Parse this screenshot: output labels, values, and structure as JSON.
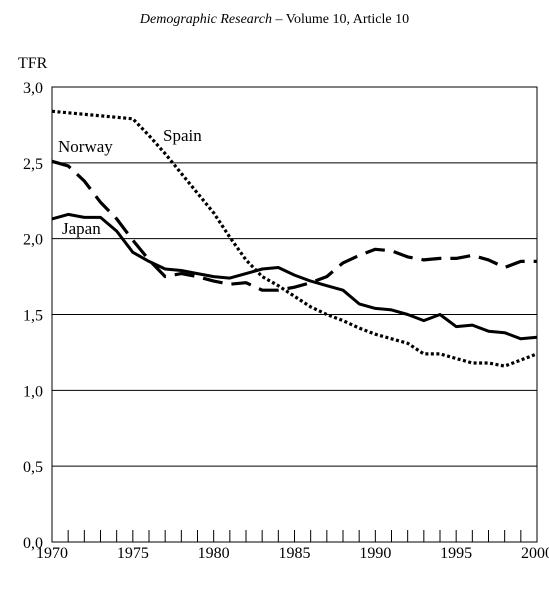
{
  "header": {
    "journal": "Demographic Research",
    "separator": " – ",
    "issue": "Volume 10, Article 10"
  },
  "chart_data": {
    "type": "line",
    "ylabel": "TFR",
    "xlabel": "",
    "xlim": [
      1970,
      2000
    ],
    "ylim": [
      0,
      3
    ],
    "x_ticks": [
      1970,
      1975,
      1980,
      1985,
      1990,
      1995,
      2000
    ],
    "y_ticks": [
      "0,0",
      "0,5",
      "1,0",
      "1,5",
      "2,0",
      "2,5",
      "3,0"
    ],
    "y_tick_values": [
      0,
      0.5,
      1,
      1.5,
      2,
      2.5,
      3
    ],
    "grid": "horizontal",
    "x": [
      1970,
      1971,
      1972,
      1973,
      1974,
      1975,
      1976,
      1977,
      1978,
      1979,
      1980,
      1981,
      1982,
      1983,
      1984,
      1985,
      1986,
      1987,
      1988,
      1989,
      1990,
      1991,
      1992,
      1993,
      1994,
      1995,
      1996,
      1997,
      1998,
      1999,
      2000
    ],
    "series": [
      {
        "name": "Spain",
        "style": "dotted",
        "values": [
          2.84,
          2.83,
          2.82,
          2.81,
          2.8,
          2.79,
          2.68,
          2.56,
          2.43,
          2.3,
          2.17,
          2.01,
          1.86,
          1.75,
          1.69,
          1.62,
          1.55,
          1.5,
          1.46,
          1.41,
          1.37,
          1.34,
          1.31,
          1.24,
          1.24,
          1.21,
          1.18,
          1.18,
          1.16,
          1.2,
          1.24
        ]
      },
      {
        "name": "Norway",
        "style": "dashed",
        "values": [
          2.51,
          2.48,
          2.38,
          2.24,
          2.13,
          1.99,
          1.86,
          1.75,
          1.77,
          1.75,
          1.72,
          1.7,
          1.71,
          1.66,
          1.66,
          1.68,
          1.71,
          1.75,
          1.84,
          1.89,
          1.93,
          1.92,
          1.88,
          1.86,
          1.87,
          1.87,
          1.89,
          1.86,
          1.81,
          1.85,
          1.85
        ]
      },
      {
        "name": "Japan",
        "style": "solid",
        "values": [
          2.13,
          2.16,
          2.14,
          2.14,
          2.05,
          1.91,
          1.85,
          1.8,
          1.79,
          1.77,
          1.75,
          1.74,
          1.77,
          1.8,
          1.81,
          1.76,
          1.72,
          1.69,
          1.66,
          1.57,
          1.54,
          1.53,
          1.5,
          1.46,
          1.5,
          1.42,
          1.43,
          1.39,
          1.38,
          1.34,
          1.35
        ]
      }
    ]
  }
}
